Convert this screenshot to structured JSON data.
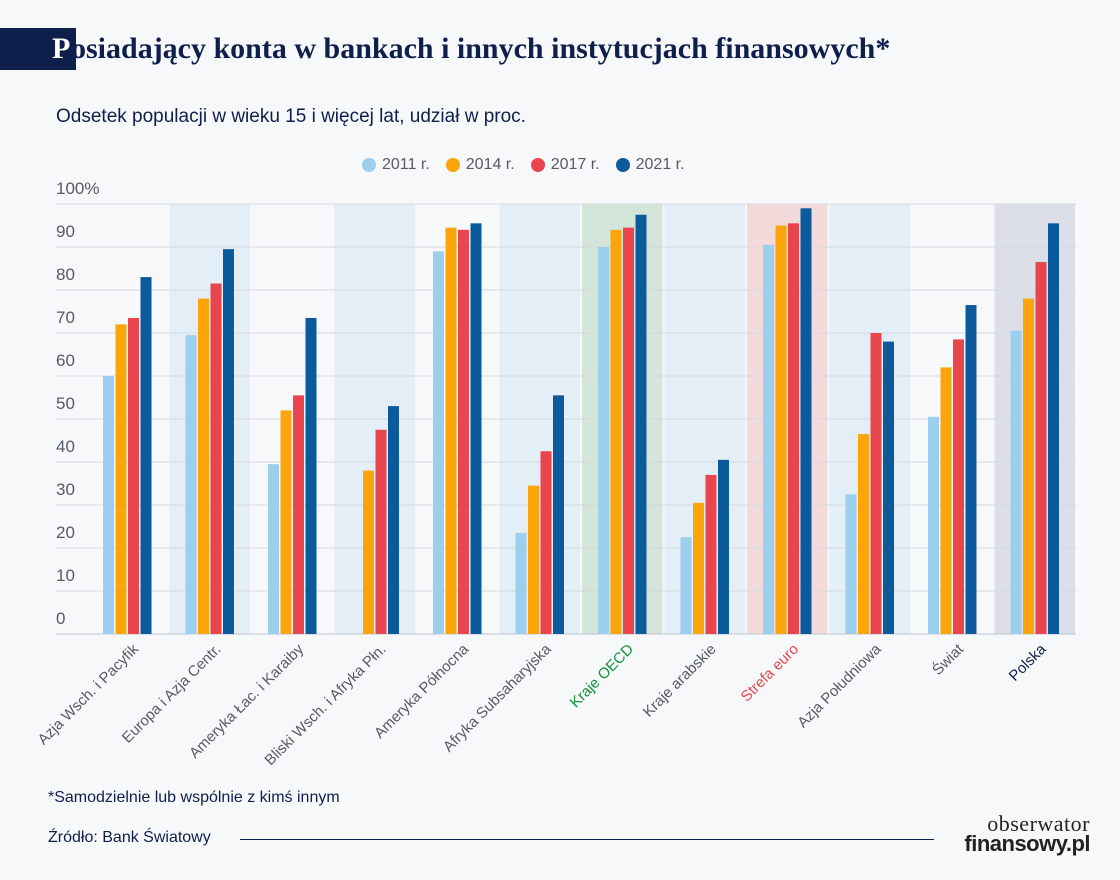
{
  "title": {
    "first_letter": "P",
    "rest": "osiadający konta w bankach i innych instytucjach finansowych*"
  },
  "subtitle": "Odsetek populacji w wieku 15 i więcej lat, udział w proc.",
  "legend": [
    {
      "label": "2011 r.",
      "color": "#9ccfee"
    },
    {
      "label": "2014 r.",
      "color": "#fca50a"
    },
    {
      "label": "2017 r.",
      "color": "#e8454d"
    },
    {
      "label": "2021 r.",
      "color": "#0a5a9c"
    }
  ],
  "footnote": "*Samodzielnie lub wspólnie z kimś innym",
  "source": "Źródło: Bank Światowy",
  "logo": {
    "line1": "obserwator",
    "line2": "finansowy.pl"
  },
  "chart_data": {
    "type": "bar",
    "title": "Posiadający konta w bankach i innych instytucjach finansowych*",
    "subtitle": "Odsetek populacji w wieku 15 i więcej lat, udział w proc.",
    "ylim": [
      0,
      100
    ],
    "y_ticks": [
      "0",
      "10",
      "20",
      "30",
      "40",
      "50",
      "60",
      "70",
      "80",
      "90",
      "100%"
    ],
    "grid": true,
    "legend_position": "top",
    "categories": [
      "Azja Wsch. i Pacyfik",
      "Europa i Azja Centr.",
      "Ameryka Łac. i Karaiby",
      "Bliski Wsch. i Afryka Płn.",
      "Ameryka Północna",
      "Afryka Subsaharyjska",
      "Kraje OECD",
      "Kraje arabskie",
      "Strefa euro",
      "Azja Południowa",
      "Świat",
      "Polska"
    ],
    "category_backgrounds": [
      null,
      "#e3eef7",
      null,
      "#e3eef7",
      null,
      "#e3eef7",
      "#d3e6d9",
      "#e3eef7",
      "#f2dada",
      "#e3eef7",
      null,
      "#dcdfe8"
    ],
    "category_label_colors": [
      "#555a66",
      "#555a66",
      "#555a66",
      "#555a66",
      "#555a66",
      "#555a66",
      "#13923a",
      "#555a66",
      "#e8454d",
      "#555a66",
      "#555a66",
      "#0f1f4b"
    ],
    "series": [
      {
        "name": "2011 r.",
        "color": "#9ccfee",
        "values": [
          60,
          69.5,
          39.5,
          null,
          89,
          23.5,
          90,
          22.5,
          90.5,
          32.5,
          50.5,
          70.5
        ]
      },
      {
        "name": "2014 r.",
        "color": "#fca50a",
        "values": [
          72,
          78,
          52,
          38,
          94.5,
          34.5,
          94,
          30.5,
          95,
          46.5,
          62,
          78
        ]
      },
      {
        "name": "2017 r.",
        "color": "#e8454d",
        "values": [
          73.5,
          81.5,
          55.5,
          47.5,
          94,
          42.5,
          94.5,
          37,
          95.5,
          70,
          68.5,
          86.5
        ]
      },
      {
        "name": "2021 r.",
        "color": "#0a5a9c",
        "values": [
          83,
          89.5,
          73.5,
          53,
          95.5,
          55.5,
          97.5,
          40.5,
          99,
          68,
          76.5,
          95.5
        ]
      }
    ]
  }
}
